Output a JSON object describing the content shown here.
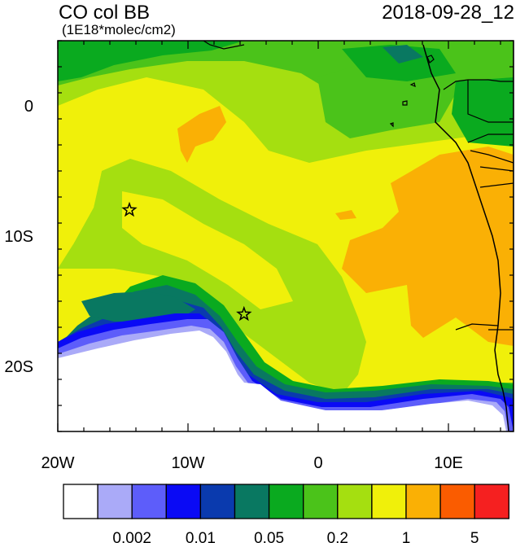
{
  "header": {
    "title": "CO col BB",
    "units": "(1E18*molec/cm2)",
    "datetime": "2018-09-28_12"
  },
  "axes": {
    "x_ticks": [
      {
        "value": -20,
        "label": "20W"
      },
      {
        "value": -10,
        "label": "10W"
      },
      {
        "value": 0,
        "label": "0"
      },
      {
        "value": 10,
        "label": "10E"
      }
    ],
    "y_ticks": [
      {
        "value": 0,
        "label": "0"
      },
      {
        "value": -10,
        "label": "10S"
      },
      {
        "value": -20,
        "label": "20S"
      }
    ],
    "lon_range": [
      -20,
      15
    ],
    "lat_range": [
      -25,
      5
    ]
  },
  "colorbar": {
    "colors": [
      "#ffffff",
      "#aaaaf8",
      "#5d5dfa",
      "#0a0af5",
      "#0a3aae",
      "#097861",
      "#0aaa1f",
      "#4bc31a",
      "#a5df10",
      "#f0f00a",
      "#fab005",
      "#fa5c00",
      "#f52020"
    ],
    "labels": [
      {
        "after_box": 2,
        "text": "0.002"
      },
      {
        "after_box": 4,
        "text": "0.01"
      },
      {
        "after_box": 6,
        "text": "0.05"
      },
      {
        "after_box": 8,
        "text": "0.2"
      },
      {
        "after_box": 10,
        "text": "1"
      },
      {
        "after_box": 12,
        "text": "5"
      }
    ]
  },
  "markers": [
    {
      "name": "star-marker-1",
      "lon": -14.5,
      "lat": -8.0
    },
    {
      "name": "star-marker-2",
      "lon": -5.7,
      "lat": -16.0
    }
  ]
}
